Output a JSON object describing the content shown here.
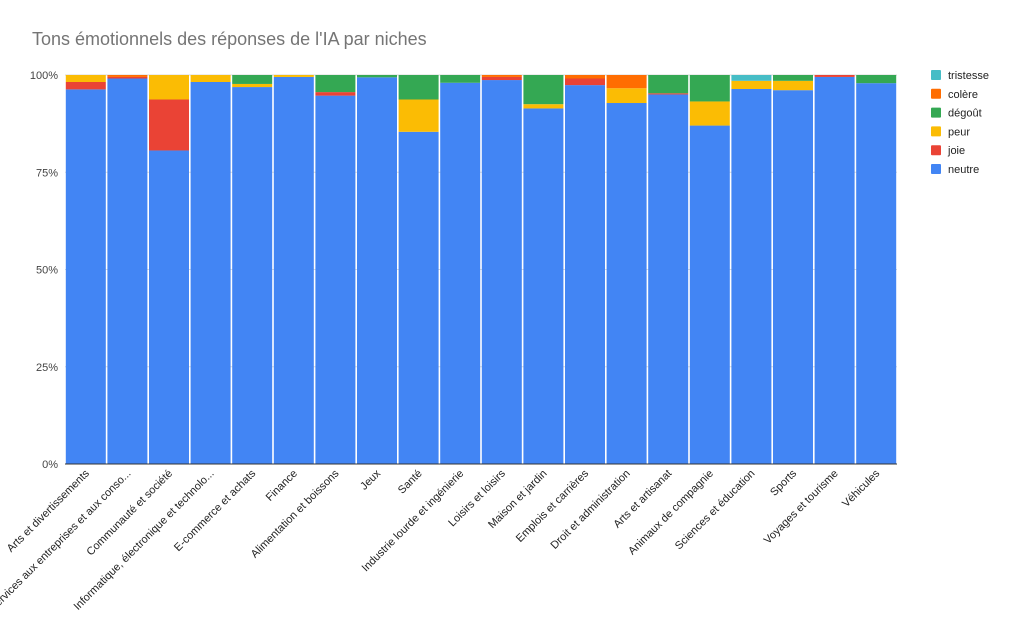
{
  "chart_data": {
    "type": "bar",
    "stacked": "percent",
    "title": "Tons émotionnels des réponses de l'IA par niches",
    "xlabel": "",
    "ylabel": "",
    "ylim": [
      0,
      100
    ],
    "yticks": [
      "0%",
      "25%",
      "50%",
      "75%",
      "100%"
    ],
    "grid": true,
    "legend_position": "right",
    "categories": [
      "Arts et divertissements",
      "Services aux entreprises et aux conso...",
      "Communauté et société",
      "Informatique, électronique et technolo...",
      "E-commerce et achats",
      "Finance",
      "Alimentation et boissons",
      "Jeux",
      "Santé",
      "Industrie lourde et ingénierie",
      "Loisirs et loisirs",
      "Maison et jardin",
      "Emplois et carrières",
      "Droit et administration",
      "Arts et artisanat",
      "Animaux de compagnie",
      "Sciences et éducation",
      "Sports",
      "Voyages et tourisme",
      "Véhicules"
    ],
    "series": [
      {
        "name": "neutre",
        "color": "#4285f4",
        "values": [
          96.3,
          99.1,
          80.6,
          98.2,
          96.9,
          99.5,
          94.7,
          99.4,
          85.4,
          98.0,
          98.7,
          91.4,
          97.4,
          92.8,
          95.0,
          87.0,
          96.4,
          96.1,
          99.5,
          97.9
        ]
      },
      {
        "name": "joie",
        "color": "#ea4335",
        "values": [
          1.9,
          0.4,
          13.1,
          0,
          0,
          0,
          0.9,
          0,
          0,
          0,
          0.8,
          0,
          1.7,
          0,
          0.3,
          0,
          0,
          0,
          0.5,
          0
        ]
      },
      {
        "name": "peur",
        "color": "#fbbc04",
        "values": [
          1.8,
          0,
          6.3,
          1.8,
          0.8,
          0.5,
          0,
          0,
          8.3,
          0,
          0,
          1.1,
          0,
          3.8,
          0,
          6.2,
          2.1,
          2.4,
          0,
          0
        ]
      },
      {
        "name": "dégoût",
        "color": "#34a853",
        "values": [
          0,
          0,
          0,
          0,
          2.3,
          0,
          4.4,
          0.6,
          6.3,
          2.0,
          0,
          7.5,
          0,
          0,
          4.7,
          6.8,
          0,
          1.5,
          0,
          2.1
        ]
      },
      {
        "name": "colère",
        "color": "#ff6d01",
        "values": [
          0,
          0.5,
          0,
          0,
          0,
          0,
          0,
          0,
          0,
          0,
          0.5,
          0,
          0.9,
          3.4,
          0,
          0,
          0,
          0,
          0,
          0
        ]
      },
      {
        "name": "tristesse",
        "color": "#46bdc6",
        "values": [
          0,
          0,
          0,
          0,
          0,
          0,
          0,
          0,
          0,
          0,
          0,
          0,
          0,
          0,
          0,
          0,
          1.5,
          0,
          0,
          0
        ]
      }
    ]
  }
}
